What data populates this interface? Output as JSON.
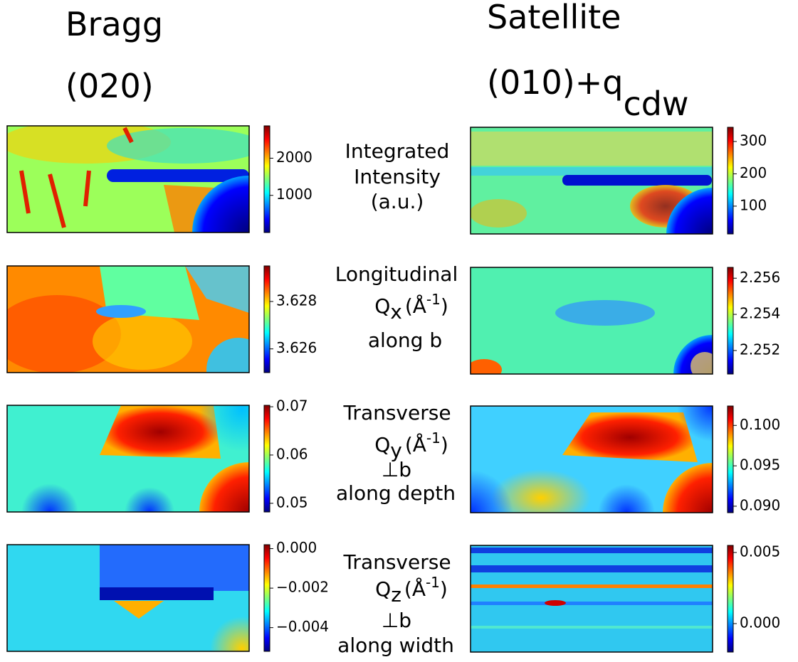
{
  "columns": [
    {
      "title": "Bragg",
      "subtitle": "(020)"
    },
    {
      "title": "Satellite",
      "subtitle": "(010)+q",
      "subtitle_sub": "cdw"
    }
  ],
  "rows": [
    {
      "lines": [
        "Integrated",
        "Intensity",
        "(a.u.)"
      ]
    },
    {
      "name": "Longitudinal",
      "symbol": "Q",
      "symbol_sub": "x",
      "unit_open": "(Å",
      "unit_exp": "-1",
      "unit_close": ")",
      "notes": [
        "along b"
      ]
    },
    {
      "name": "Transverse",
      "symbol": "Q",
      "symbol_sub": "y",
      "unit_open": "(Å",
      "unit_exp": "-1",
      "unit_close": ")",
      "notes": [
        "⊥b",
        "along depth"
      ]
    },
    {
      "name": "Transverse",
      "symbol": "Q",
      "symbol_sub": "z",
      "unit_open": "(Å",
      "unit_exp": "-1",
      "unit_close": ")",
      "notes": [
        "⊥b",
        "along width"
      ]
    }
  ],
  "panels": [
    {
      "colorbar": {
        "lim": [
          0,
          2870
        ],
        "ticks": [
          1000,
          2000
        ]
      }
    },
    {
      "colorbar": {
        "lim": [
          14,
          344
        ],
        "ticks": [
          100,
          200,
          300
        ]
      }
    },
    {
      "colorbar": {
        "lim": [
          3.625,
          3.6295
        ],
        "ticks": [
          3.626,
          3.628
        ]
      }
    },
    {
      "colorbar": {
        "lim": [
          2.2507,
          2.2566
        ],
        "ticks": [
          2.252,
          2.254,
          2.256
        ]
      }
    },
    {
      "colorbar": {
        "lim": [
          0.0482,
          0.0703
        ],
        "ticks": [
          0.05,
          0.06,
          0.07
        ]
      }
    },
    {
      "colorbar": {
        "lim": [
          0.0892,
          0.1024
        ],
        "ticks": [
          {
            "value": 0.09,
            "label": "0.090"
          },
          0.095,
          {
            "value": 0.1,
            "label": "0.100"
          }
        ]
      }
    },
    {
      "colorbar": {
        "lim": [
          -0.0052,
          0.0002
        ],
        "ticks": [
          {
            "value": -0.004,
            "label": "−0.004"
          },
          {
            "value": -0.002,
            "label": "−0.002"
          },
          {
            "value": 0,
            "label": "0.000"
          }
        ]
      }
    },
    {
      "colorbar": {
        "lim": [
          -0.002,
          0.0055
        ],
        "ticks": [
          {
            "value": 0,
            "label": "0.000"
          },
          0.005
        ]
      }
    }
  ]
}
